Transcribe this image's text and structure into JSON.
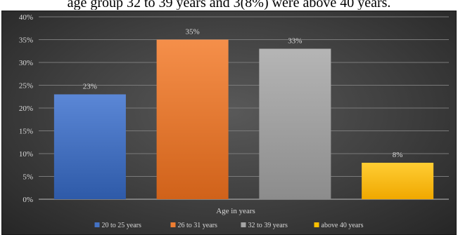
{
  "caption": "age group 32 to 39 years and 3(8%) were above 40 years.",
  "chart_data": {
    "type": "bar",
    "categories": [
      "20 to 25 years",
      "26 to 31 years",
      "32 to 39 years",
      "above 40 years"
    ],
    "values": [
      23,
      35,
      33,
      8
    ],
    "value_labels": [
      "23%",
      "35%",
      "33%",
      "8%"
    ],
    "colors": [
      "#4472C4",
      "#ED7D31",
      "#A5A5A5",
      "#FFC000"
    ],
    "xlabel": "Age in years",
    "ylabel": "",
    "ylim": [
      0,
      40
    ],
    "yticks": [
      0,
      5,
      10,
      15,
      20,
      25,
      30,
      35,
      40
    ],
    "ytick_labels": [
      "0%",
      "5%",
      "10%",
      "15%",
      "20%",
      "25%",
      "30%",
      "35%",
      "40%"
    ],
    "grid": true,
    "legend": {
      "position": "bottom",
      "entries": [
        "20 to 25 years",
        "26 to 31 years",
        "32 to 39 years",
        "above 40 years"
      ]
    }
  }
}
